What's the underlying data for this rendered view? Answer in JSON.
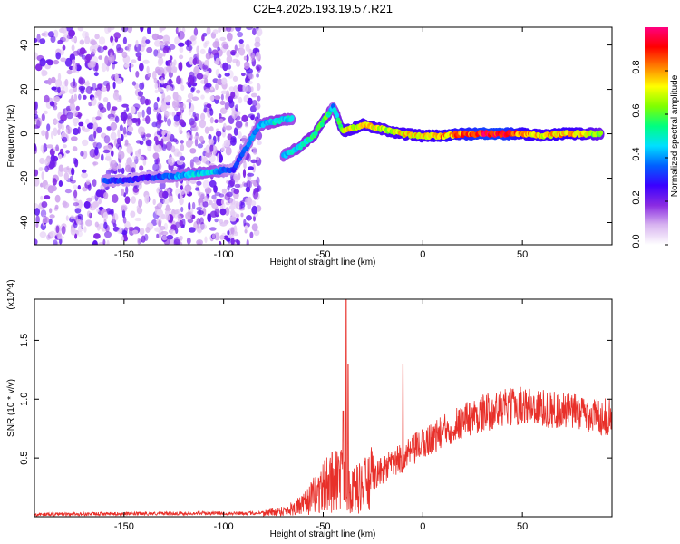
{
  "title": "C2E4.2025.193.19.57.R21",
  "chart_data": [
    {
      "type": "heatmap",
      "xlabel": "Height of straight line (km)",
      "ylabel": "Frequency (Hz)",
      "xlim": [
        -195,
        95
      ],
      "ylim": [
        -50,
        48
      ],
      "xticks": [
        -150,
        -100,
        -50,
        0,
        50
      ],
      "yticks": [
        -40,
        -20,
        0,
        20,
        40
      ],
      "colorbar": {
        "label": "Normalized spectral amplitude",
        "range": [
          0,
          1
        ],
        "ticks": [
          "0.0",
          "0.2",
          "0.4",
          "0.6",
          "0.8"
        ],
        "colors": [
          "#ffffff",
          "#d8b4f0",
          "#8a2be2",
          "#3a00ff",
          "#0060ff",
          "#00e0ff",
          "#00ff80",
          "#80ff00",
          "#ffff00",
          "#ff8000",
          "#ff0000",
          "#ff0080"
        ]
      },
      "ridge": [
        {
          "x": -160,
          "y": -21,
          "amp": 0.35
        },
        {
          "x": -150,
          "y": -21,
          "amp": 0.3
        },
        {
          "x": -140,
          "y": -20,
          "amp": 0.28
        },
        {
          "x": -125,
          "y": -19,
          "amp": 0.4
        },
        {
          "x": -115,
          "y": -18,
          "amp": 0.45
        },
        {
          "x": -105,
          "y": -17,
          "amp": 0.45
        },
        {
          "x": -95,
          "y": -16,
          "amp": 0.3
        },
        {
          "x": -82,
          "y": 4,
          "amp": 0.45
        },
        {
          "x": -72,
          "y": 6,
          "amp": 0.5
        },
        {
          "x": -65,
          "y": 7,
          "amp": 0.45
        },
        {
          "x": -70,
          "y": -10,
          "amp": 0.45
        },
        {
          "x": -62,
          "y": -6,
          "amp": 0.5
        },
        {
          "x": -55,
          "y": -1,
          "amp": 0.55
        },
        {
          "x": -48,
          "y": 8,
          "amp": 0.6
        },
        {
          "x": -45,
          "y": 12,
          "amp": 0.4
        },
        {
          "x": -40,
          "y": 1,
          "amp": 0.7
        },
        {
          "x": -30,
          "y": 4,
          "amp": 0.75
        },
        {
          "x": -20,
          "y": 2,
          "amp": 0.7
        },
        {
          "x": -10,
          "y": 0,
          "amp": 0.75
        },
        {
          "x": 0,
          "y": -1,
          "amp": 0.75
        },
        {
          "x": 10,
          "y": -1,
          "amp": 0.8
        },
        {
          "x": 20,
          "y": 0,
          "amp": 0.85
        },
        {
          "x": 30,
          "y": 0,
          "amp": 0.95
        },
        {
          "x": 40,
          "y": 0,
          "amp": 0.95
        },
        {
          "x": 50,
          "y": 0,
          "amp": 0.8
        },
        {
          "x": 60,
          "y": -1,
          "amp": 0.75
        },
        {
          "x": 70,
          "y": 0,
          "amp": 0.8
        },
        {
          "x": 80,
          "y": 0,
          "amp": 0.75
        },
        {
          "x": 90,
          "y": 0,
          "amp": 0.6
        }
      ]
    },
    {
      "type": "line",
      "xlabel": "Height of straight line (km)",
      "ylabel": "SNR (10 * v/v)",
      "yscale_label": "(x10^4)",
      "xlim": [
        -195,
        95
      ],
      "ylim": [
        0,
        1.85
      ],
      "xticks": [
        -150,
        -100,
        -50,
        0,
        50
      ],
      "yticks": [
        "0.5",
        "1.0",
        "1.5"
      ],
      "color": "#e8302a",
      "envelope": [
        {
          "x": -195,
          "y": 0.02
        },
        {
          "x": -150,
          "y": 0.025
        },
        {
          "x": -110,
          "y": 0.03
        },
        {
          "x": -85,
          "y": 0.03
        },
        {
          "x": -70,
          "y": 0.05
        },
        {
          "x": -60,
          "y": 0.1
        },
        {
          "x": -50,
          "y": 0.25
        },
        {
          "x": -42,
          "y": 0.35
        },
        {
          "x": -35,
          "y": 0.22
        },
        {
          "x": -28,
          "y": 0.28
        },
        {
          "x": -20,
          "y": 0.4
        },
        {
          "x": -10,
          "y": 0.5
        },
        {
          "x": 0,
          "y": 0.62
        },
        {
          "x": 10,
          "y": 0.72
        },
        {
          "x": 20,
          "y": 0.82
        },
        {
          "x": 30,
          "y": 0.88
        },
        {
          "x": 40,
          "y": 0.92
        },
        {
          "x": 50,
          "y": 0.95
        },
        {
          "x": 60,
          "y": 0.92
        },
        {
          "x": 70,
          "y": 0.9
        },
        {
          "x": 80,
          "y": 0.88
        },
        {
          "x": 90,
          "y": 0.85
        },
        {
          "x": 95,
          "y": 0.85
        }
      ],
      "spikes": [
        {
          "x": -38.5,
          "y": 1.85
        },
        {
          "x": -37.5,
          "y": 1.3
        },
        {
          "x": -10,
          "y": 1.3
        },
        {
          "x": -40,
          "y": 0.9
        }
      ]
    }
  ]
}
